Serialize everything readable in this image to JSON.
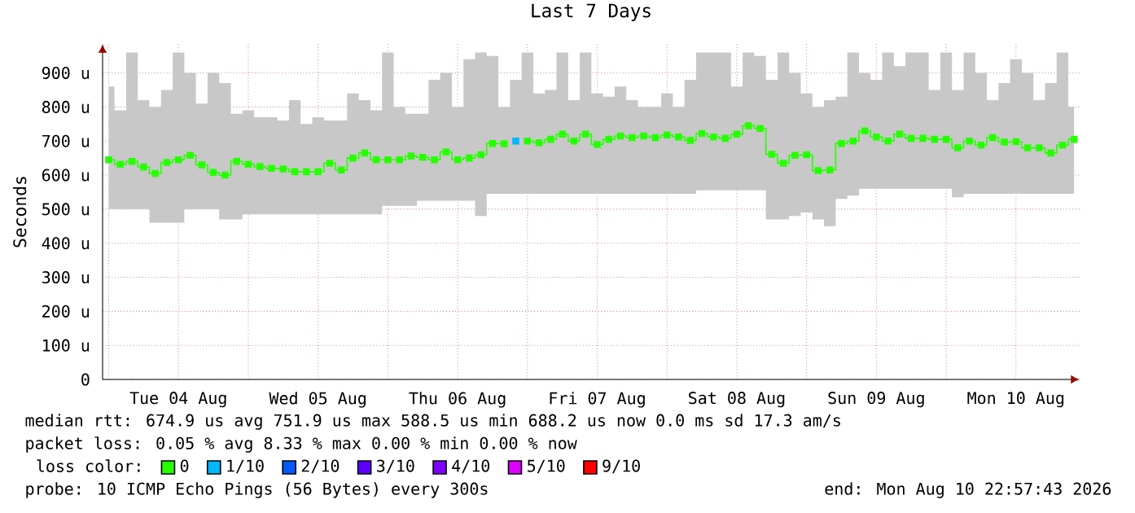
{
  "chart_data": {
    "type": "step",
    "title": "Last 7 Days",
    "ylabel": "Seconds",
    "x": [
      "2026-08-04T00:00",
      "2026-08-04T02:00",
      "2026-08-04T04:00",
      "2026-08-04T06:00",
      "2026-08-04T08:00",
      "2026-08-04T10:00",
      "2026-08-04T12:00",
      "2026-08-04T14:00",
      "2026-08-04T16:00",
      "2026-08-04T18:00",
      "2026-08-04T20:00",
      "2026-08-04T22:00",
      "2026-08-05T00:00",
      "2026-08-05T02:00",
      "2026-08-05T04:00",
      "2026-08-05T06:00",
      "2026-08-05T08:00",
      "2026-08-05T10:00",
      "2026-08-05T12:00",
      "2026-08-05T14:00",
      "2026-08-05T16:00",
      "2026-08-05T18:00",
      "2026-08-05T20:00",
      "2026-08-05T22:00",
      "2026-08-06T00:00",
      "2026-08-06T02:00",
      "2026-08-06T04:00",
      "2026-08-06T06:00",
      "2026-08-06T08:00",
      "2026-08-06T10:00",
      "2026-08-06T12:00",
      "2026-08-06T14:00",
      "2026-08-06T16:00",
      "2026-08-06T18:00",
      "2026-08-06T20:00",
      "2026-08-06T22:00",
      "2026-08-07T00:00",
      "2026-08-07T02:00",
      "2026-08-07T04:00",
      "2026-08-07T06:00",
      "2026-08-07T08:00",
      "2026-08-07T10:00",
      "2026-08-07T12:00",
      "2026-08-07T14:00",
      "2026-08-07T16:00",
      "2026-08-07T18:00",
      "2026-08-07T20:00",
      "2026-08-07T22:00",
      "2026-08-08T00:00",
      "2026-08-08T02:00",
      "2026-08-08T04:00",
      "2026-08-08T06:00",
      "2026-08-08T08:00",
      "2026-08-08T10:00",
      "2026-08-08T12:00",
      "2026-08-08T14:00",
      "2026-08-08T16:00",
      "2026-08-08T18:00",
      "2026-08-08T20:00",
      "2026-08-08T22:00",
      "2026-08-09T00:00",
      "2026-08-09T02:00",
      "2026-08-09T04:00",
      "2026-08-09T06:00",
      "2026-08-09T08:00",
      "2026-08-09T10:00",
      "2026-08-09T12:00",
      "2026-08-09T14:00",
      "2026-08-09T16:00",
      "2026-08-09T18:00",
      "2026-08-09T20:00",
      "2026-08-09T22:00",
      "2026-08-10T00:00",
      "2026-08-10T02:00",
      "2026-08-10T04:00",
      "2026-08-10T06:00",
      "2026-08-10T08:00",
      "2026-08-10T10:00",
      "2026-08-10T12:00",
      "2026-08-10T14:00",
      "2026-08-10T16:00",
      "2026-08-10T18:00",
      "2026-08-10T20:00",
      "2026-08-10T22:00"
    ],
    "series": [
      {
        "name": "0",
        "color": "#26ff00",
        "values": [
          645,
          632,
          640,
          624,
          605,
          637,
          645,
          658,
          630,
          608,
          600,
          640,
          632,
          625,
          620,
          618,
          610,
          610,
          610,
          635,
          615,
          650,
          665,
          645,
          645,
          645,
          656,
          652,
          645,
          668,
          645,
          650,
          660,
          693,
          692,
          null,
          700,
          695,
          705,
          720,
          700,
          720,
          690,
          705,
          715,
          710,
          715,
          710,
          718,
          712,
          702,
          722,
          712,
          708,
          720,
          745,
          737,
          661,
          635,
          658,
          660,
          613,
          615,
          693,
          700,
          730,
          712,
          700,
          720,
          708,
          708,
          705,
          705,
          680,
          700,
          688,
          710,
          697,
          698,
          680,
          680,
          665,
          688,
          705
        ],
        "lower": [
          500,
          500,
          500,
          500,
          460,
          460,
          460,
          500,
          500,
          500,
          470,
          470,
          485,
          485,
          485,
          485,
          485,
          485,
          485,
          485,
          485,
          485,
          485,
          485,
          510,
          510,
          510,
          525,
          525,
          525,
          525,
          525,
          480,
          545,
          545,
          545,
          545,
          545,
          545,
          545,
          545,
          545,
          545,
          545,
          545,
          545,
          545,
          545,
          545,
          545,
          545,
          555,
          555,
          555,
          555,
          555,
          555,
          470,
          470,
          480,
          490,
          470,
          450,
          530,
          540,
          560,
          560,
          560,
          560,
          560,
          560,
          560,
          560,
          535,
          545,
          545,
          545,
          545,
          545,
          545,
          545,
          545,
          545,
          545
        ],
        "upper": [
          860,
          790,
          960,
          820,
          800,
          850,
          960,
          900,
          810,
          900,
          870,
          780,
          790,
          770,
          770,
          760,
          820,
          750,
          770,
          760,
          760,
          840,
          820,
          790,
          960,
          800,
          780,
          780,
          880,
          900,
          800,
          940,
          960,
          950,
          800,
          880,
          960,
          840,
          850,
          960,
          820,
          960,
          840,
          830,
          860,
          820,
          800,
          800,
          840,
          800,
          880,
          960,
          960,
          960,
          860,
          960,
          950,
          880,
          960,
          900,
          840,
          800,
          820,
          830,
          960,
          900,
          880,
          960,
          920,
          960,
          960,
          850,
          960,
          850,
          960,
          900,
          820,
          870,
          940,
          900,
          820,
          870,
          960,
          800
        ]
      },
      {
        "name": "1/10",
        "color": "#00b8ff",
        "x": [
          "2026-08-06T22:00"
        ],
        "values": [
          700
        ]
      },
      {
        "name": "2/10",
        "color": "#0059ff",
        "values": [
          null,
          null,
          null,
          null,
          null,
          null,
          null,
          null,
          null,
          null,
          null,
          null,
          null,
          null,
          null,
          null,
          null,
          null,
          null,
          null,
          null,
          null,
          null,
          null,
          null,
          null,
          null,
          null,
          null,
          null,
          null,
          null,
          null,
          null,
          null,
          null,
          null,
          null,
          null,
          null,
          null,
          null,
          null,
          null,
          null,
          null,
          null,
          null,
          null,
          null,
          null,
          null,
          null,
          null,
          null,
          null,
          null,
          null,
          null,
          null,
          null,
          null,
          null,
          null,
          null,
          null,
          null,
          null,
          null,
          null,
          null,
          null,
          null,
          null,
          null,
          null,
          null,
          null,
          null,
          null,
          null,
          null,
          null,
          null
        ]
      },
      {
        "name": "3/10",
        "color": "#5e00ff",
        "values": [
          null,
          null,
          null,
          null,
          null,
          null,
          null,
          null,
          null,
          null,
          null,
          null,
          null,
          null,
          null,
          null,
          null,
          null,
          null,
          null,
          null,
          null,
          null,
          null,
          null,
          null,
          null,
          null,
          null,
          null,
          null,
          null,
          null,
          null,
          null,
          null,
          null,
          null,
          null,
          null,
          null,
          null,
          null,
          null,
          null,
          null,
          null,
          null,
          null,
          null,
          null,
          null,
          null,
          null,
          null,
          null,
          null,
          null,
          null,
          null,
          null,
          null,
          null,
          null,
          null,
          null,
          null,
          null,
          null,
          null,
          null,
          null,
          null,
          null,
          null,
          null,
          null,
          null,
          null,
          null,
          null,
          null,
          null,
          null
        ]
      },
      {
        "name": "4/10",
        "color": "#7e00ff",
        "values": [
          null,
          null,
          null,
          null,
          null,
          null,
          null,
          null,
          null,
          null,
          null,
          null,
          null,
          null,
          null,
          null,
          null,
          null,
          null,
          null,
          null,
          null,
          null,
          null,
          null,
          null,
          null,
          null,
          null,
          null,
          null,
          null,
          null,
          null,
          null,
          null,
          null,
          null,
          null,
          null,
          null,
          null,
          null,
          null,
          null,
          null,
          null,
          null,
          null,
          null,
          null,
          null,
          null,
          null,
          null,
          null,
          null,
          null,
          null,
          null,
          null,
          null,
          null,
          null,
          null,
          null,
          null,
          null,
          null,
          null,
          null,
          null,
          null,
          null,
          null,
          null,
          null,
          null,
          null,
          null,
          null,
          null,
          null,
          null
        ]
      },
      {
        "name": "5/10",
        "color": "#dd00ff",
        "values": [
          null,
          null,
          null,
          null,
          null,
          null,
          null,
          null,
          null,
          null,
          null,
          null,
          null,
          null,
          null,
          null,
          null,
          null,
          null,
          null,
          null,
          null,
          null,
          null,
          null,
          null,
          null,
          null,
          null,
          null,
          null,
          null,
          null,
          null,
          null,
          null,
          null,
          null,
          null,
          null,
          null,
          null,
          null,
          null,
          null,
          null,
          null,
          null,
          null,
          null,
          null,
          null,
          null,
          null,
          null,
          null,
          null,
          null,
          null,
          null,
          null,
          null,
          null,
          null,
          null,
          null,
          null,
          null,
          null,
          null,
          null,
          null,
          null,
          null,
          null,
          null,
          null,
          null,
          null,
          null,
          null,
          null,
          null,
          null
        ]
      },
      {
        "name": "9/10",
        "color": "#ff0000",
        "values": [
          null,
          null,
          null,
          null,
          null,
          null,
          null,
          null,
          null,
          null,
          null,
          null,
          null,
          null,
          null,
          null,
          null,
          null,
          null,
          null,
          null,
          null,
          null,
          null,
          null,
          null,
          null,
          null,
          null,
          null,
          null,
          null,
          null,
          null,
          null,
          null,
          null,
          null,
          null,
          null,
          null,
          null,
          null,
          null,
          null,
          null,
          null,
          null,
          null,
          null,
          null,
          null,
          null,
          null,
          null,
          null,
          null,
          null,
          null,
          null,
          null,
          null,
          null,
          null,
          null,
          null,
          null,
          null,
          null,
          null,
          null,
          null,
          null,
          null,
          null,
          null,
          null,
          null,
          null,
          null,
          null,
          null,
          null,
          null
        ]
      }
    ],
    "xlim": [
      "2026-08-03T22:57",
      "2026-08-10T22:57"
    ],
    "xticks": [
      {
        "value": "2026-08-04T00:00",
        "label": null
      },
      {
        "value": "2026-08-04T12:00",
        "label": "Tue 04 Aug"
      },
      {
        "value": "2026-08-05T00:00",
        "label": null
      },
      {
        "value": "2026-08-05T12:00",
        "label": "Wed 05 Aug"
      },
      {
        "value": "2026-08-06T00:00",
        "label": null
      },
      {
        "value": "2026-08-06T12:00",
        "label": "Thu 06 Aug"
      },
      {
        "value": "2026-08-07T00:00",
        "label": null
      },
      {
        "value": "2026-08-07T12:00",
        "label": "Fri 07 Aug"
      },
      {
        "value": "2026-08-08T00:00",
        "label": null
      },
      {
        "value": "2026-08-08T12:00",
        "label": "Sat 08 Aug"
      },
      {
        "value": "2026-08-09T00:00",
        "label": null
      },
      {
        "value": "2026-08-09T12:00",
        "label": "Sun 09 Aug"
      },
      {
        "value": "2026-08-10T00:00",
        "label": null
      },
      {
        "value": "2026-08-10T12:00",
        "label": "Mon 10 Aug"
      }
    ],
    "ylim": [
      0,
      985
    ],
    "yticks": [
      0,
      {
        "value": 100,
        "label": "100 u"
      },
      {
        "value": 200,
        "label": "200 u"
      },
      {
        "value": 300,
        "label": "300 u"
      },
      {
        "value": 400,
        "label": "400 u"
      },
      {
        "value": 500,
        "label": "500 u"
      },
      {
        "value": 600,
        "label": "600 u"
      },
      {
        "value": 700,
        "label": "700 u"
      },
      {
        "value": 800,
        "label": "800 u"
      },
      {
        "value": 900,
        "label": "900 u"
      }
    ],
    "grid": true,
    "marker": "square",
    "legend": "bottom",
    "legend_title": "loss color:",
    "annotations": [
      "median rtt:  674.9 us avg   751.9 us max   588.5 us min   688.2 us now    0.0 ms sd   17.3   am/s",
      "packet loss: 0.05 % avg  8.33 % max  0.00 % min  0.00 % now",
      "probe:       10 ICMP Echo Pings (56 Bytes) every 300s",
      "end: Mon Aug 10 22:57:43 2026"
    ]
  }
}
